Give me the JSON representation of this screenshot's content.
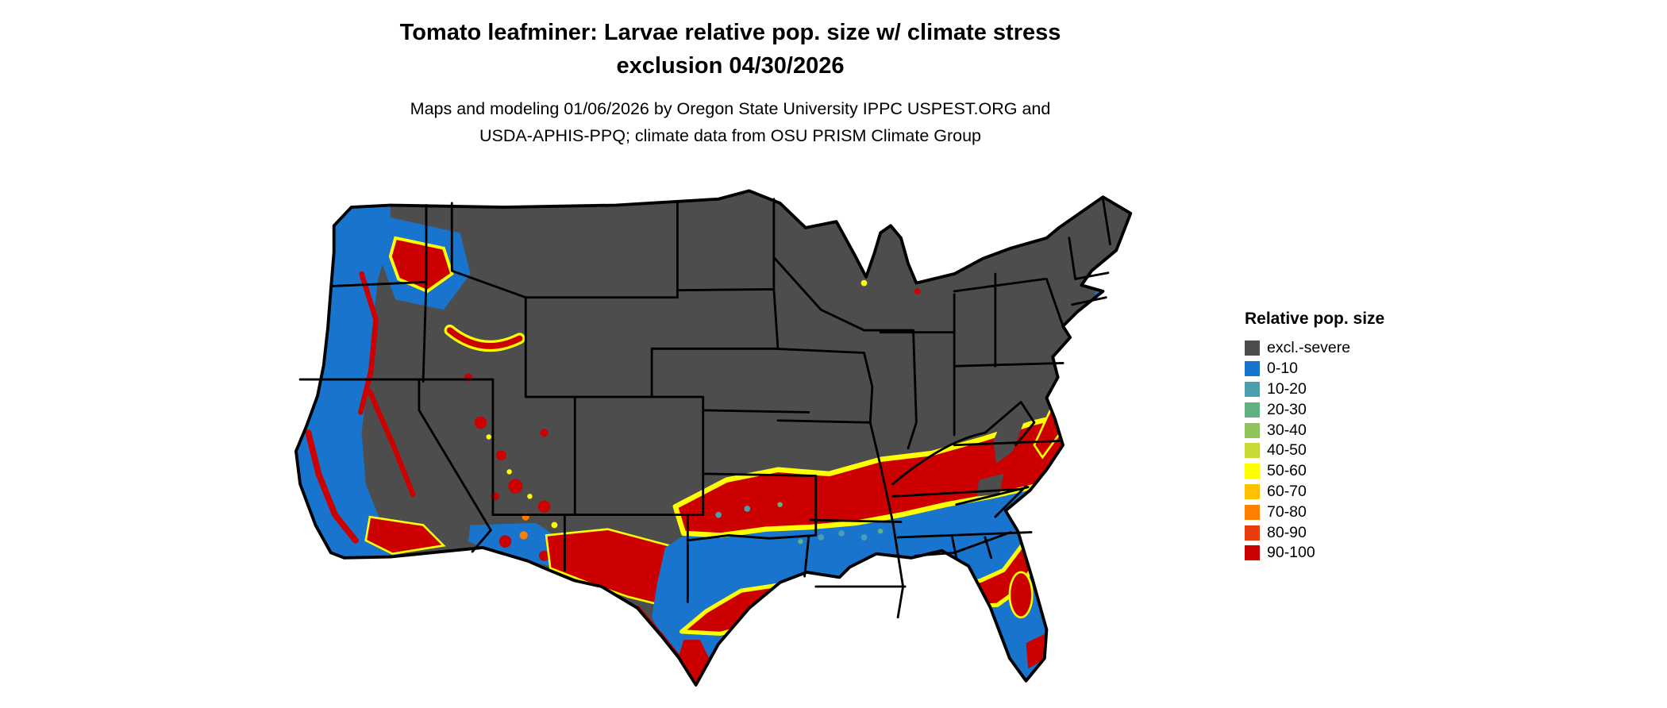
{
  "title": {
    "line1": "Tomato leafminer: Larvae relative pop. size w/ climate stress",
    "line2": "exclusion 04/30/2026"
  },
  "subtitle": {
    "line1": "Maps and modeling 01/06/2026 by Oregon State University IPPC USPEST.ORG and",
    "line2": "USDA-APHIS-PPQ; climate data from OSU PRISM Climate Group"
  },
  "legend": {
    "title": "Relative pop. size",
    "items": [
      {
        "label": "excl.-severe",
        "color": "#4d4d4d"
      },
      {
        "label": "0-10",
        "color": "#1874cd"
      },
      {
        "label": "10-20",
        "color": "#4a9eae"
      },
      {
        "label": "20-30",
        "color": "#61b283"
      },
      {
        "label": "30-40",
        "color": "#8fc35b"
      },
      {
        "label": "40-50",
        "color": "#c6d937"
      },
      {
        "label": "50-60",
        "color": "#ffff00"
      },
      {
        "label": "60-70",
        "color": "#ffc100"
      },
      {
        "label": "70-80",
        "color": "#ff8000"
      },
      {
        "label": "80-90",
        "color": "#e83c0e"
      },
      {
        "label": "90-100",
        "color": "#cd0000"
      }
    ]
  }
}
